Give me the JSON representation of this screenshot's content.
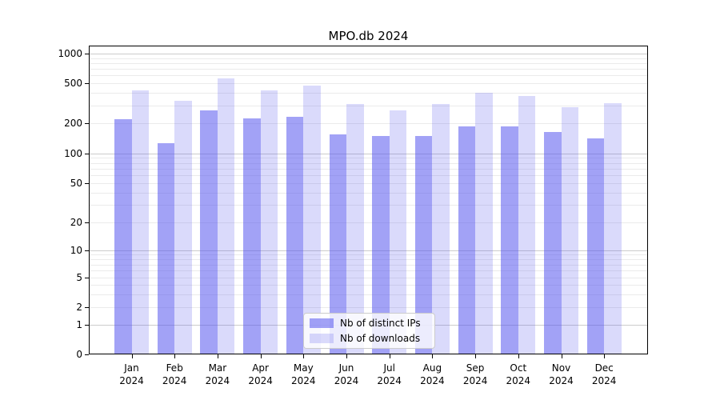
{
  "chart_data": {
    "type": "bar",
    "title": "MPO.db 2024",
    "categories": [
      "Jan 2024",
      "Feb 2024",
      "Mar 2024",
      "Apr 2024",
      "May 2024",
      "Jun 2024",
      "Jul 2024",
      "Aug 2024",
      "Sep 2024",
      "Oct 2024",
      "Nov 2024",
      "Dec 2024"
    ],
    "series": [
      {
        "name": "Nb of distinct IPs",
        "color": "#5555ee",
        "alpha": 0.55,
        "values": [
          220,
          125,
          265,
          225,
          230,
          155,
          148,
          150,
          185,
          185,
          162,
          142
        ]
      },
      {
        "name": "Nb of downloads",
        "color": "#5555ee",
        "alpha": 0.22,
        "values": [
          420,
          330,
          560,
          420,
          470,
          310,
          265,
          310,
          395,
          370,
          285,
          315
        ]
      }
    ],
    "xlabel": "",
    "ylabel": "",
    "yscale": "symlog",
    "yticks": [
      0,
      1,
      2,
      5,
      10,
      20,
      50,
      100,
      200,
      500,
      1000
    ],
    "ylim": [
      0,
      1200
    ],
    "grid": "horizontal major (powers of 10) and log minor gridlines",
    "legend_position": "lower center"
  }
}
